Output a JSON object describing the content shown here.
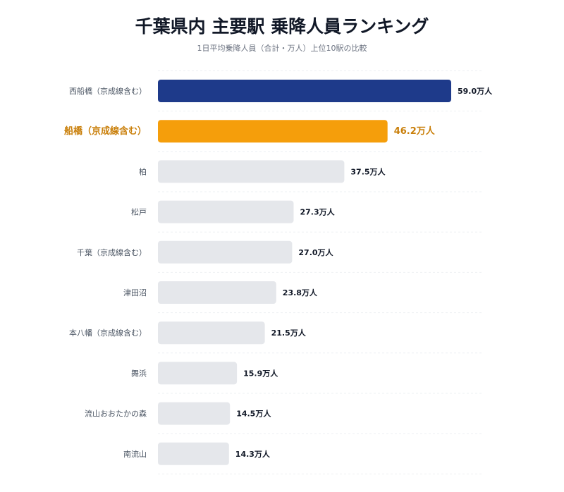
{
  "header": {
    "title": "千葉県内 主要駅 乗降人員ランキング",
    "subtitle": "1日平均乗降人員（合計・万人）上位10駅の比較"
  },
  "colors": {
    "top": "#1e3a8a",
    "highlight": "#f59e0b",
    "highlight_text": "#c97f0a",
    "other": "#e5e7eb",
    "grid": "#eef0f3"
  },
  "chart_data": {
    "type": "bar",
    "orientation": "horizontal",
    "title": "千葉県内 主要駅 乗降人員ランキング",
    "subtitle": "1日平均乗降人員（合計・万人）上位10駅の比較",
    "unit": "万人",
    "categories": [
      "西船橋（京成線含む）",
      "船橋（京成線含む）",
      "柏",
      "松戸",
      "千葉（京成線含む）",
      "津田沼",
      "本八幡（京成線含む）",
      "舞浜",
      "流山おおたかの森",
      "南流山"
    ],
    "values": [
      59.0,
      46.2,
      37.5,
      27.3,
      27.0,
      23.8,
      21.5,
      15.9,
      14.5,
      14.3
    ],
    "value_labels": [
      "59.0万人",
      "46.2万人",
      "37.5万人",
      "27.3万人",
      "27.0万人",
      "23.8万人",
      "21.5万人",
      "15.9万人",
      "14.5万人",
      "14.3万人"
    ],
    "highlight_index": 1,
    "top_index": 0,
    "xlim": [
      0,
      59.0
    ],
    "grid": true,
    "legend": "none"
  }
}
